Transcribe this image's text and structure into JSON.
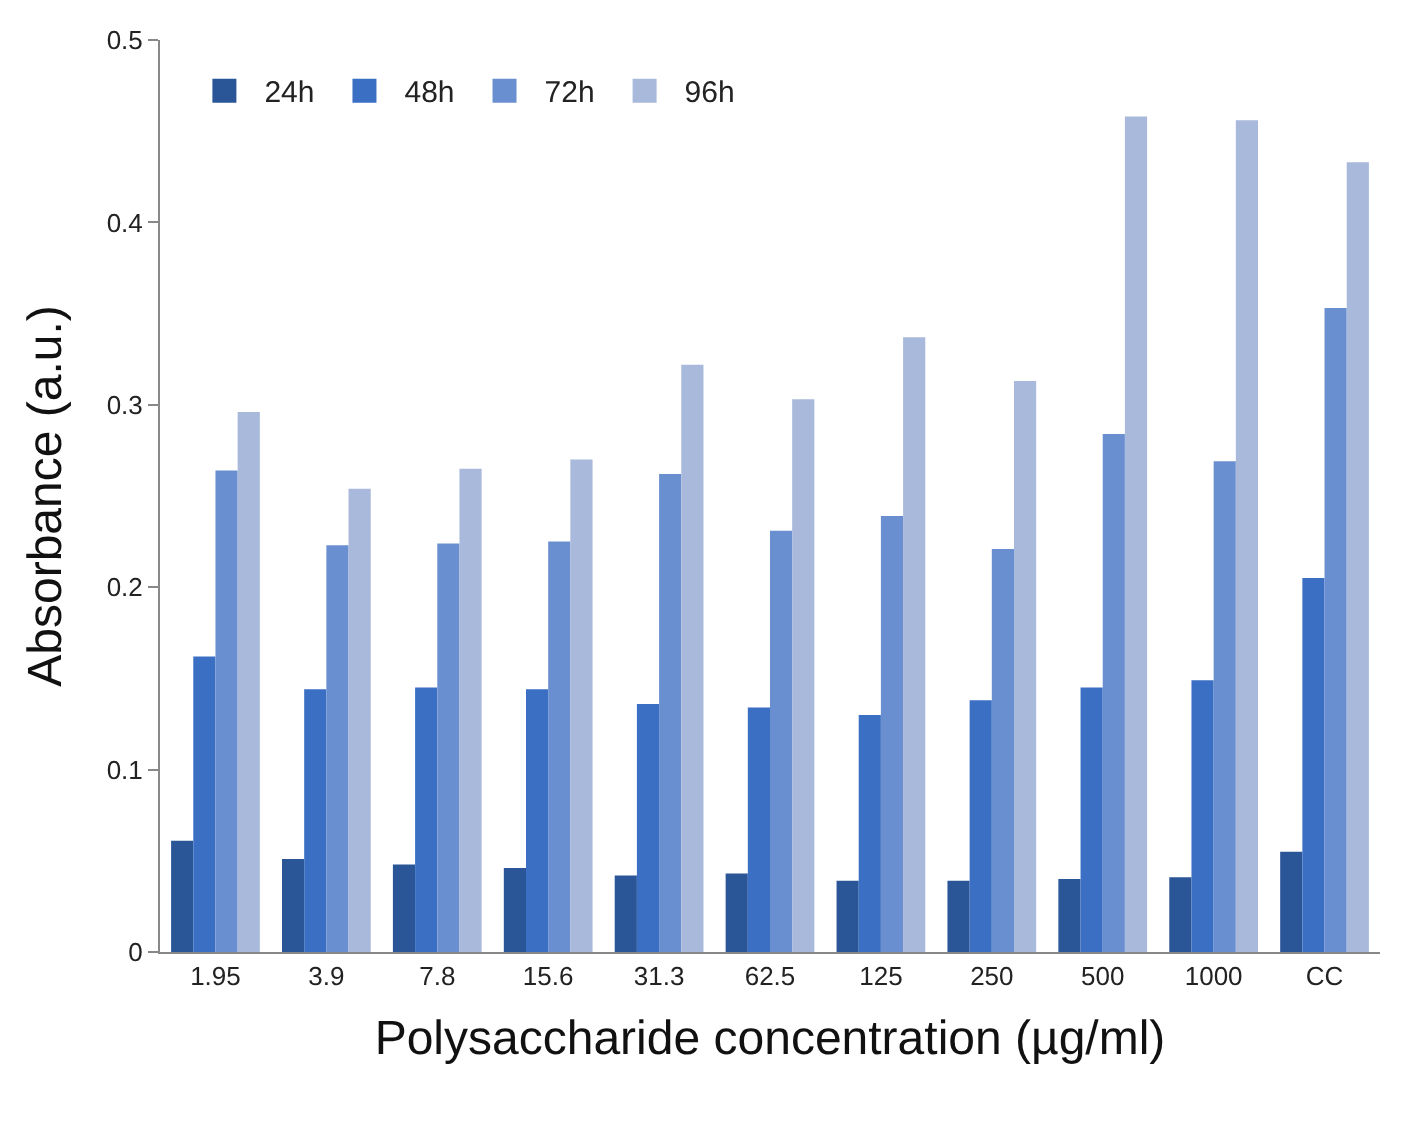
{
  "chart_data": {
    "type": "bar",
    "xlabel": "Polysaccharide concentration (µg/ml)",
    "ylabel": "Absorbance (a.u.)",
    "categories": [
      "1.95",
      "3.9",
      "7.8",
      "15.6",
      "31.3",
      "62.5",
      "125",
      "250",
      "500",
      "1000",
      "CC"
    ],
    "series": [
      {
        "name": "24h",
        "color": "#2a5698",
        "values": [
          0.061,
          0.051,
          0.048,
          0.046,
          0.042,
          0.043,
          0.039,
          0.039,
          0.04,
          0.041,
          0.055
        ]
      },
      {
        "name": "48h",
        "color": "#3a6fc4",
        "values": [
          0.162,
          0.144,
          0.145,
          0.144,
          0.136,
          0.134,
          0.13,
          0.138,
          0.145,
          0.149,
          0.205
        ]
      },
      {
        "name": "72h",
        "color": "#6a8fd0",
        "values": [
          0.264,
          0.223,
          0.224,
          0.225,
          0.262,
          0.231,
          0.239,
          0.221,
          0.284,
          0.269,
          0.353
        ]
      },
      {
        "name": "96h",
        "color": "#a8b9dc",
        "values": [
          0.296,
          0.254,
          0.265,
          0.27,
          0.322,
          0.303,
          0.337,
          0.313,
          0.458,
          0.456,
          0.433
        ]
      }
    ],
    "ylim": [
      0,
      0.5
    ],
    "yticks": [
      0,
      0.1,
      0.2,
      0.3,
      0.4,
      0.5
    ],
    "grid": false,
    "legend": "top left"
  }
}
